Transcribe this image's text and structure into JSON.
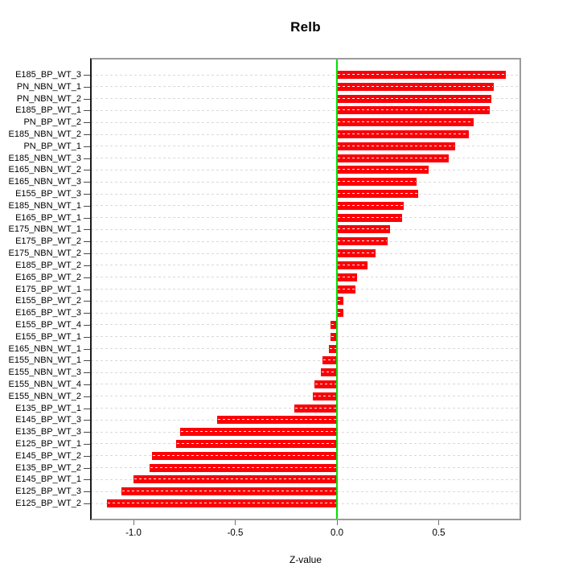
{
  "title": "Relb",
  "x_axis": {
    "label": "Z-value",
    "tick_labels": [
      "-1.0",
      "-0.5",
      "0.0",
      "0.5"
    ]
  },
  "chart_data": {
    "type": "bar",
    "orientation": "horizontal",
    "title": "Relb",
    "xlabel": "Z-value",
    "ylabel": "",
    "xlim": [
      -1.21,
      0.9
    ],
    "xticks": [
      -1.0,
      -0.5,
      0.0,
      0.5
    ],
    "xtick_labels": [
      "-1.0",
      "-0.5",
      "0.0",
      "0.5"
    ],
    "grid": "horizontal-dashed",
    "zero_line": 0.0,
    "legend": null,
    "colors": {
      "bar": "#fb0006",
      "bar_stripe": "#ffffff",
      "zero_line": "#00e100",
      "grid": "#d9d9d9",
      "box": "#9b9b9b",
      "axis": "#1c1c1c"
    },
    "categories": [
      "E185_BP_WT_3",
      "PN_NBN_WT_1",
      "PN_NBN_WT_2",
      "E185_BP_WT_1",
      "PN_BP_WT_2",
      "E185_NBN_WT_2",
      "PN_BP_WT_1",
      "E185_NBN_WT_3",
      "E165_NBN_WT_2",
      "E165_NBN_WT_3",
      "E155_BP_WT_3",
      "E185_NBN_WT_1",
      "E165_BP_WT_1",
      "E175_NBN_WT_1",
      "E175_BP_WT_2",
      "E175_NBN_WT_2",
      "E185_BP_WT_2",
      "E165_BP_WT_2",
      "E175_BP_WT_1",
      "E155_BP_WT_2",
      "E165_BP_WT_3",
      "E155_BP_WT_4",
      "E155_BP_WT_1",
      "E165_NBN_WT_1",
      "E155_NBN_WT_1",
      "E155_NBN_WT_3",
      "E155_NBN_WT_4",
      "E155_NBN_WT_2",
      "E135_BP_WT_1",
      "E145_BP_WT_3",
      "E135_BP_WT_3",
      "E125_BP_WT_1",
      "E145_BP_WT_2",
      "E135_BP_WT_2",
      "E145_BP_WT_1",
      "E125_BP_WT_3",
      "E125_BP_WT_2"
    ],
    "values": [
      0.83,
      0.77,
      0.76,
      0.75,
      0.67,
      0.65,
      0.58,
      0.55,
      0.45,
      0.39,
      0.4,
      0.33,
      0.32,
      0.26,
      0.25,
      0.19,
      0.15,
      0.1,
      0.09,
      0.03,
      0.03,
      -0.03,
      -0.03,
      -0.04,
      -0.07,
      -0.08,
      -0.11,
      -0.12,
      -0.21,
      -0.59,
      -0.77,
      -0.79,
      -0.91,
      -0.92,
      -1.0,
      -1.06,
      -1.13
    ]
  }
}
